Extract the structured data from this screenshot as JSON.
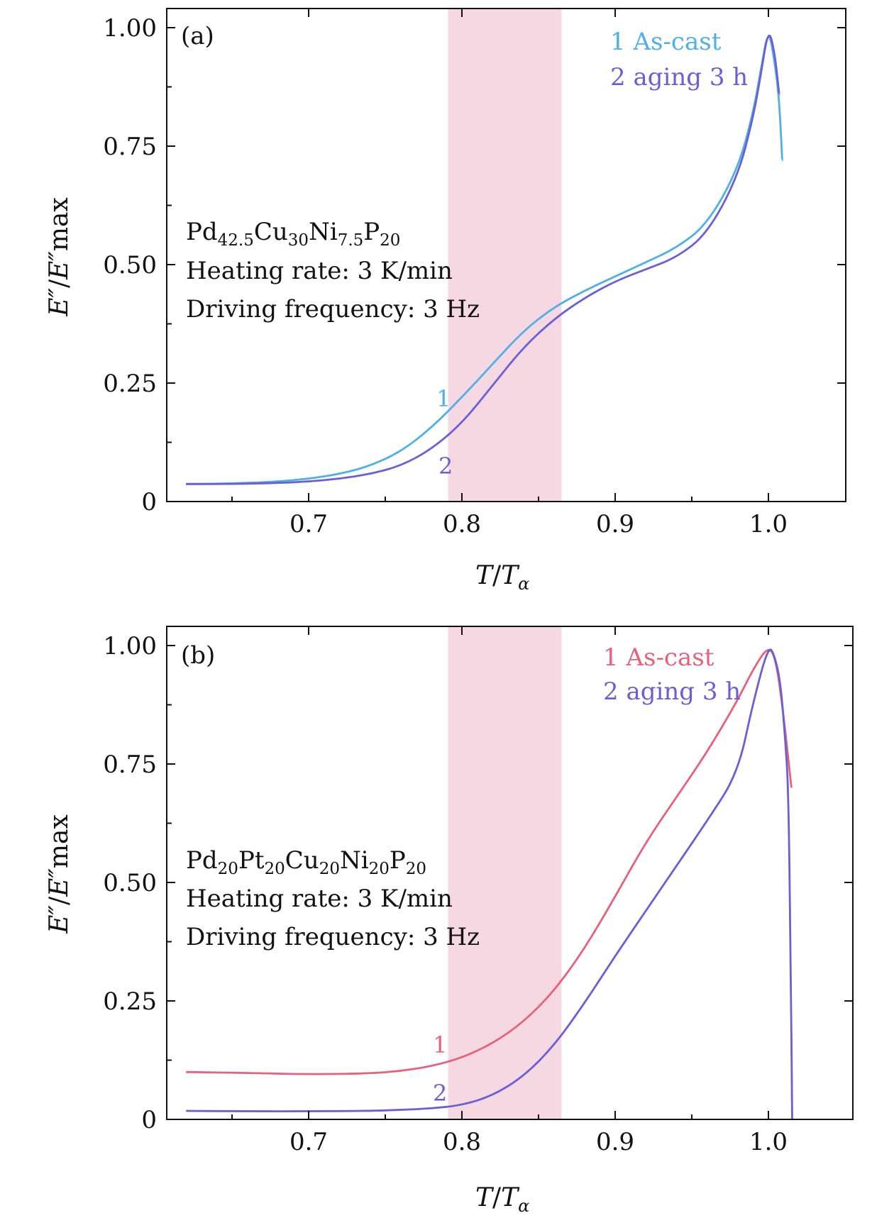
{
  "figure": {
    "x_ticks": [
      "0.7",
      "0.8",
      "0.9",
      "1.0"
    ],
    "y_ticks": [
      "0",
      "0.25",
      "0.50",
      "0.75",
      "1.00"
    ]
  },
  "chart_data": [
    {
      "type": "line",
      "panel_label": "(a)",
      "xlabel": "T/Tα",
      "ylabel": "E″/E″max",
      "xlim": [
        0.62,
        1.016
      ],
      "ylim": [
        0,
        1.0
      ],
      "x_ticks": [
        0.7,
        0.8,
        0.9,
        1.0
      ],
      "y_ticks": [
        0,
        0.25,
        0.5,
        0.75,
        1.0
      ],
      "highlight_band": {
        "x_start": 0.791,
        "x_end": 0.865,
        "color": "#f6d8e2"
      },
      "annotation": {
        "composition": "Pd42.5Cu30Ni7.5P20",
        "heating_rate": "Heating rate: 3 K/min",
        "frequency": "Driving frequency: 3 Hz"
      },
      "legend": {
        "position": "top-right",
        "entries": [
          "1 As-cast",
          "2 aging 3 h"
        ]
      },
      "series": [
        {
          "name": "1 As-cast",
          "label": "1",
          "color": "#4fb0e6",
          "x": [
            0.62,
            0.65,
            0.68,
            0.7,
            0.72,
            0.74,
            0.76,
            0.78,
            0.8,
            0.82,
            0.84,
            0.86,
            0.88,
            0.9,
            0.92,
            0.94,
            0.96,
            0.98,
            0.99,
            0.995,
            1.0,
            1.004,
            1.007,
            1.009
          ],
          "y": [
            0.037,
            0.038,
            0.042,
            0.048,
            0.058,
            0.075,
            0.105,
            0.155,
            0.22,
            0.29,
            0.36,
            0.41,
            0.445,
            0.475,
            0.505,
            0.535,
            0.585,
            0.7,
            0.82,
            0.91,
            1.0,
            0.93,
            0.85,
            0.72
          ]
        },
        {
          "name": "2 aging 3 h",
          "label": "2",
          "color": "#6a5fd6",
          "x": [
            0.62,
            0.65,
            0.68,
            0.7,
            0.72,
            0.74,
            0.76,
            0.78,
            0.8,
            0.82,
            0.84,
            0.86,
            0.88,
            0.9,
            0.92,
            0.94,
            0.96,
            0.98,
            0.99,
            0.995,
            1.0,
            1.004,
            1.007
          ],
          "y": [
            0.037,
            0.037,
            0.039,
            0.042,
            0.048,
            0.058,
            0.075,
            0.11,
            0.165,
            0.245,
            0.325,
            0.385,
            0.43,
            0.465,
            0.49,
            0.515,
            0.565,
            0.685,
            0.81,
            0.9,
            1.0,
            0.95,
            0.86
          ]
        }
      ]
    },
    {
      "type": "line",
      "panel_label": "(b)",
      "xlabel": "T/Tα",
      "ylabel": "E″/E″max",
      "xlim": [
        0.62,
        1.016
      ],
      "ylim": [
        0,
        1.0
      ],
      "x_ticks": [
        0.7,
        0.8,
        0.9,
        1.0
      ],
      "y_ticks": [
        0,
        0.25,
        0.5,
        0.75,
        1.0
      ],
      "highlight_band": {
        "x_start": 0.791,
        "x_end": 0.865,
        "color": "#f6d8e2"
      },
      "annotation": {
        "composition": "Pd20Pt20Cu20Ni20P20",
        "heating_rate": "Heating rate: 3 K/min",
        "frequency": "Driving frequency: 3 Hz"
      },
      "legend": {
        "position": "top-right",
        "entries": [
          "1 As-cast",
          "2 aging 3 h"
        ]
      },
      "series": [
        {
          "name": "1 As-cast",
          "label": "1",
          "color": "#e8607a",
          "x": [
            0.62,
            0.66,
            0.7,
            0.74,
            0.76,
            0.78,
            0.8,
            0.82,
            0.84,
            0.86,
            0.88,
            0.9,
            0.92,
            0.94,
            0.96,
            0.98,
            0.99,
            1.0,
            1.005,
            1.01,
            1.015
          ],
          "y": [
            0.1,
            0.098,
            0.095,
            0.097,
            0.102,
            0.112,
            0.13,
            0.16,
            0.205,
            0.27,
            0.36,
            0.47,
            0.585,
            0.68,
            0.775,
            0.885,
            0.95,
            1.0,
            0.97,
            0.85,
            0.7
          ]
        },
        {
          "name": "2 aging 3 h",
          "label": "2",
          "color": "#6a5fd6",
          "x": [
            0.62,
            0.66,
            0.7,
            0.74,
            0.76,
            0.78,
            0.8,
            0.82,
            0.84,
            0.86,
            0.88,
            0.9,
            0.92,
            0.94,
            0.96,
            0.98,
            0.99,
            1.0,
            1.004,
            1.008,
            1.011,
            1.013,
            1.0145,
            1.0155
          ],
          "y": [
            0.018,
            0.017,
            0.017,
            0.018,
            0.02,
            0.023,
            0.03,
            0.05,
            0.09,
            0.155,
            0.245,
            0.345,
            0.44,
            0.535,
            0.63,
            0.73,
            0.88,
            1.0,
            0.98,
            0.92,
            0.8,
            0.7,
            0.35,
            0.0
          ]
        }
      ]
    }
  ]
}
